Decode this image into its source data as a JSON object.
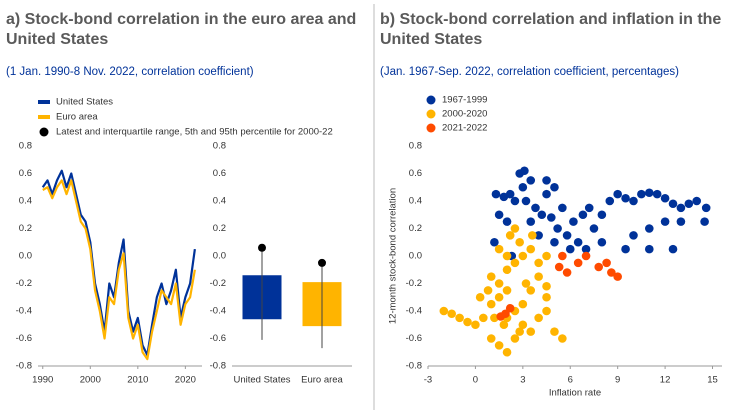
{
  "chart_data": [
    {
      "type": "line",
      "title": "a) Stock-bond correlation in the euro area and United States",
      "subtitle": "(1 Jan. 1990-8 Nov. 2022, correlation coefficient)",
      "x": [
        1990,
        1991,
        1992,
        1993,
        1994,
        1995,
        1996,
        1997,
        1998,
        1999,
        2000,
        2001,
        2002,
        2003,
        2004,
        2005,
        2006,
        2007,
        2008,
        2009,
        2010,
        2011,
        2012,
        2013,
        2014,
        2015,
        2016,
        2017,
        2018,
        2019,
        2020,
        2021,
        2022
      ],
      "series": [
        {
          "name": "United States",
          "color": "#003299",
          "values": [
            0.5,
            0.55,
            0.45,
            0.55,
            0.62,
            0.5,
            0.6,
            0.45,
            0.3,
            0.25,
            0.1,
            -0.2,
            -0.35,
            -0.55,
            -0.2,
            -0.3,
            -0.05,
            0.12,
            -0.4,
            -0.55,
            -0.45,
            -0.65,
            -0.72,
            -0.5,
            -0.3,
            -0.2,
            -0.35,
            -0.25,
            -0.1,
            -0.45,
            -0.3,
            -0.2,
            0.05
          ]
        },
        {
          "name": "Euro area",
          "color": "#ffb400",
          "values": [
            0.48,
            0.5,
            0.42,
            0.5,
            0.55,
            0.45,
            0.55,
            0.4,
            0.25,
            0.2,
            0.05,
            -0.25,
            -0.4,
            -0.6,
            -0.3,
            -0.35,
            -0.1,
            0.02,
            -0.45,
            -0.6,
            -0.5,
            -0.7,
            -0.75,
            -0.55,
            -0.4,
            -0.25,
            -0.3,
            -0.35,
            -0.2,
            -0.5,
            -0.35,
            -0.3,
            -0.1
          ]
        }
      ],
      "xlim": [
        1989,
        2023.5
      ],
      "xticks": [
        1990,
        2000,
        2010,
        2020
      ],
      "ylim": [
        -0.8,
        0.8
      ],
      "yticks": [
        -0.8,
        -0.6,
        -0.4,
        -0.2,
        {
          "value": 0,
          "label": "0.0"
        },
        0.2,
        0.4,
        0.6,
        0.8
      ]
    },
    {
      "type": "box",
      "legend_label": "Latest and interquartile range, 5th and 95th percentile for 2000-22",
      "categories": [
        "United States",
        "Euro area"
      ],
      "colors": [
        "#003299",
        "#ffb400"
      ],
      "p5": [
        -0.61,
        -0.67
      ],
      "q25": [
        -0.46,
        -0.51
      ],
      "q75": [
        -0.14,
        -0.19
      ],
      "p95": [
        0.05,
        -0.06
      ],
      "latest": [
        0.06,
        -0.05
      ],
      "ylim": [
        -0.8,
        0.8
      ],
      "yticks": [
        -0.8,
        -0.6,
        -0.4,
        -0.2,
        {
          "value": 0,
          "label": "0.0"
        },
        0.2,
        0.4,
        0.6,
        0.8
      ]
    },
    {
      "type": "scatter",
      "title": "b) Stock-bond correlation and inflation in the United States",
      "subtitle": "(Jan. 1967-Sep. 2022, correlation coefficient, percentages)",
      "x_label": "Inflation rate",
      "y_label": "12-month stock-bond correlation",
      "series": [
        {
          "name": "1967-1999",
          "color": "#003299",
          "x": [
            1.3,
            1.8,
            2.2,
            2.8,
            3.1,
            3.5,
            3.0,
            2.5,
            3.8,
            4.2,
            4.5,
            4.8,
            5.2,
            5.5,
            5.8,
            6.2,
            6.5,
            6.8,
            7.2,
            7.5,
            7.0,
            6.0,
            5.0,
            4.0,
            3.5,
            2.0,
            1.5,
            8.0,
            8.5,
            9.0,
            9.5,
            10.0,
            10.5,
            11.0,
            11.5,
            12.0,
            12.5,
            13.0,
            13.5,
            14.0,
            14.6,
            14.5,
            13.0,
            12.0,
            11.0,
            10.0,
            9.5,
            11.0,
            12.5,
            8.0,
            1.2,
            2.3,
            4.5,
            5.0,
            3.2
          ],
          "y": [
            0.45,
            0.43,
            0.45,
            0.6,
            0.62,
            0.55,
            0.5,
            0.4,
            0.35,
            0.3,
            0.45,
            0.28,
            0.2,
            0.35,
            0.15,
            0.25,
            0.1,
            0.3,
            0.35,
            0.2,
            0.05,
            0.05,
            0.1,
            0.15,
            0.25,
            0.25,
            0.3,
            0.3,
            0.4,
            0.45,
            0.42,
            0.4,
            0.45,
            0.46,
            0.45,
            0.42,
            0.38,
            0.35,
            0.38,
            0.4,
            0.35,
            0.25,
            0.25,
            0.25,
            0.2,
            0.15,
            0.05,
            0.05,
            0.05,
            0.1,
            0.1,
            0.0,
            0.55,
            0.5,
            0.4
          ]
        },
        {
          "name": "2000-2020",
          "color": "#ffb400",
          "x": [
            -2,
            -1.5,
            -1,
            -0.5,
            0,
            0.5,
            1,
            1.5,
            2,
            1.5,
            1,
            2,
            2.5,
            3,
            3.5,
            2.8,
            2.2,
            2.5,
            1.5,
            1,
            1.5,
            2,
            2.5,
            3,
            3.5,
            4,
            4.5,
            5,
            5.5,
            4.5,
            4,
            3.5,
            3,
            2.5,
            2,
            0.8,
            1.8,
            4,
            4.5,
            3.2,
            0.3,
            2,
            1.2,
            2.8,
            3.6,
            4.5
          ],
          "y": [
            -0.4,
            -0.42,
            -0.45,
            -0.48,
            -0.5,
            -0.45,
            -0.35,
            -0.3,
            -0.25,
            -0.2,
            -0.15,
            -0.1,
            -0.05,
            0.0,
            0.05,
            0.1,
            0.15,
            0.2,
            0.05,
            -0.6,
            -0.65,
            -0.7,
            -0.6,
            -0.5,
            -0.55,
            -0.45,
            -0.4,
            -0.55,
            -0.6,
            -0.3,
            -0.15,
            -0.25,
            -0.35,
            -0.4,
            -0.45,
            -0.25,
            -0.5,
            -0.05,
            0.0,
            -0.2,
            -0.3,
            0.0,
            -0.45,
            -0.55,
            0.15,
            -0.22
          ]
        },
        {
          "name": "2021-2022",
          "color": "#ff4b00",
          "x": [
            1.6,
            1.9,
            2.2,
            5.3,
            5.5,
            6.5,
            7.0,
            7.8,
            8.3,
            8.6,
            9.0,
            5.8
          ],
          "y": [
            -0.44,
            -0.42,
            -0.38,
            -0.08,
            0.0,
            -0.05,
            0.0,
            -0.08,
            -0.05,
            -0.12,
            -0.15,
            -0.12
          ]
        }
      ],
      "xlim": [
        -3,
        15.6
      ],
      "xticks": [
        -3,
        0,
        3,
        6,
        9,
        12,
        15
      ],
      "ylim": [
        -0.8,
        0.8
      ],
      "yticks": [
        -0.8,
        -0.6,
        -0.4,
        -0.2,
        {
          "value": 0,
          "label": "0.0"
        },
        0.2,
        0.4,
        0.6,
        0.8
      ]
    }
  ]
}
